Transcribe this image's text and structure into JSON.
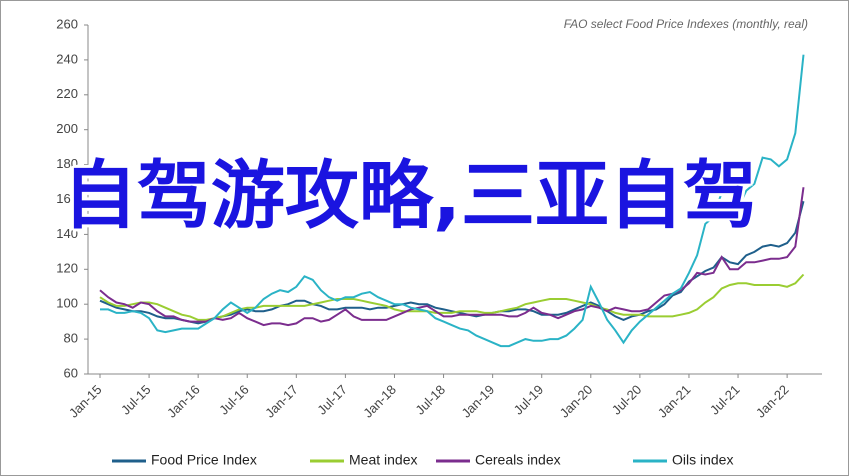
{
  "chart_data": {
    "type": "line",
    "title": "FAO select Food Price Indexes (monthly, real)",
    "categories": [
      "Jan-15",
      null,
      null,
      null,
      null,
      null,
      "Jul-15",
      null,
      null,
      null,
      null,
      null,
      "Jan-16",
      null,
      null,
      null,
      null,
      null,
      "Jul-16",
      null,
      null,
      null,
      null,
      null,
      "Jan-17",
      null,
      null,
      null,
      null,
      null,
      "Jul-17",
      null,
      null,
      null,
      null,
      null,
      "Jan-18",
      null,
      null,
      null,
      null,
      null,
      "Jul-18",
      null,
      null,
      null,
      null,
      null,
      "Jan-19",
      null,
      null,
      null,
      null,
      null,
      "Jul-19",
      null,
      null,
      null,
      null,
      null,
      "Jan-20",
      null,
      null,
      null,
      null,
      null,
      "Jul-20",
      null,
      null,
      null,
      null,
      null,
      "Jan-21",
      null,
      null,
      null,
      null,
      null,
      "Jul-21",
      null,
      null,
      null,
      null,
      null,
      "Jan-22",
      null,
      null
    ],
    "series": [
      {
        "name": "Food Price Index",
        "color": "#1f5f8b",
        "values": [
          102,
          100,
          98,
          97,
          96,
          96,
          95,
          93,
          92,
          92,
          91,
          90,
          89,
          90,
          92,
          93,
          94,
          96,
          97,
          96,
          96,
          97,
          99,
          100,
          102,
          102,
          100,
          99,
          97,
          97,
          98,
          98,
          98,
          97,
          98,
          98,
          99,
          100,
          101,
          100,
          100,
          98,
          97,
          96,
          95,
          94,
          93,
          94,
          95,
          96,
          96,
          97,
          97,
          96,
          94,
          94,
          94,
          95,
          97,
          99,
          101,
          99,
          96,
          93,
          91,
          93,
          94,
          96,
          97,
          100,
          105,
          107,
          113,
          116,
          119,
          121,
          127,
          124,
          123,
          128,
          130,
          133,
          134,
          133,
          135,
          141,
          159
        ]
      },
      {
        "name": "Meat index",
        "color": "#9acd32",
        "values": [
          104,
          101,
          99,
          99,
          100,
          101,
          101,
          100,
          98,
          96,
          94,
          93,
          91,
          91,
          92,
          93,
          95,
          97,
          98,
          98,
          99,
          99,
          99,
          99,
          99,
          99,
          100,
          101,
          102,
          103,
          103,
          103,
          102,
          101,
          100,
          99,
          97,
          96,
          96,
          96,
          96,
          95,
          95,
          95,
          96,
          96,
          96,
          95,
          95,
          96,
          97,
          98,
          100,
          101,
          102,
          103,
          103,
          103,
          102,
          101,
          100,
          98,
          97,
          95,
          94,
          94,
          94,
          93,
          93,
          93,
          93,
          94,
          95,
          97,
          101,
          104,
          109,
          111,
          112,
          112,
          111,
          111,
          111,
          111,
          110,
          112,
          117
        ]
      },
      {
        "name": "Cereals index",
        "color": "#7b2d8e",
        "values": [
          108,
          104,
          101,
          100,
          98,
          101,
          100,
          96,
          93,
          93,
          91,
          90,
          90,
          90,
          92,
          91,
          92,
          95,
          92,
          90,
          88,
          89,
          89,
          88,
          89,
          92,
          92,
          90,
          91,
          94,
          97,
          93,
          91,
          91,
          91,
          91,
          93,
          95,
          97,
          98,
          99,
          96,
          93,
          93,
          94,
          94,
          94,
          94,
          94,
          94,
          93,
          93,
          95,
          98,
          95,
          94,
          92,
          94,
          96,
          97,
          99,
          98,
          96,
          98,
          97,
          96,
          96,
          97,
          101,
          105,
          106,
          108,
          112,
          118,
          117,
          118,
          127,
          120,
          120,
          124,
          124,
          125,
          126,
          126,
          127,
          133,
          167
        ]
      },
      {
        "name": "Oils index",
        "color": "#2ab3c6",
        "values": [
          97,
          97,
          95,
          95,
          96,
          95,
          92,
          85,
          84,
          85,
          86,
          86,
          86,
          89,
          92,
          97,
          101,
          98,
          95,
          98,
          103,
          106,
          108,
          107,
          110,
          116,
          114,
          108,
          104,
          102,
          104,
          104,
          106,
          107,
          104,
          102,
          100,
          100,
          98,
          97,
          96,
          92,
          90,
          88,
          86,
          85,
          82,
          80,
          78,
          76,
          76,
          78,
          80,
          79,
          79,
          80,
          80,
          82,
          86,
          91,
          110,
          101,
          91,
          85,
          78,
          85,
          90,
          94,
          98,
          102,
          106,
          109,
          118,
          128,
          146,
          150,
          164,
          171,
          155,
          165,
          169,
          184,
          183,
          179,
          183,
          198,
          243
        ]
      }
    ],
    "ylim": [
      60,
      260
    ],
    "yticks": [
      60,
      80,
      100,
      120,
      140,
      160,
      180,
      200,
      220,
      240,
      260
    ],
    "legend": "bottom"
  },
  "overlay_text": "自驾游攻略,三亚自驾"
}
